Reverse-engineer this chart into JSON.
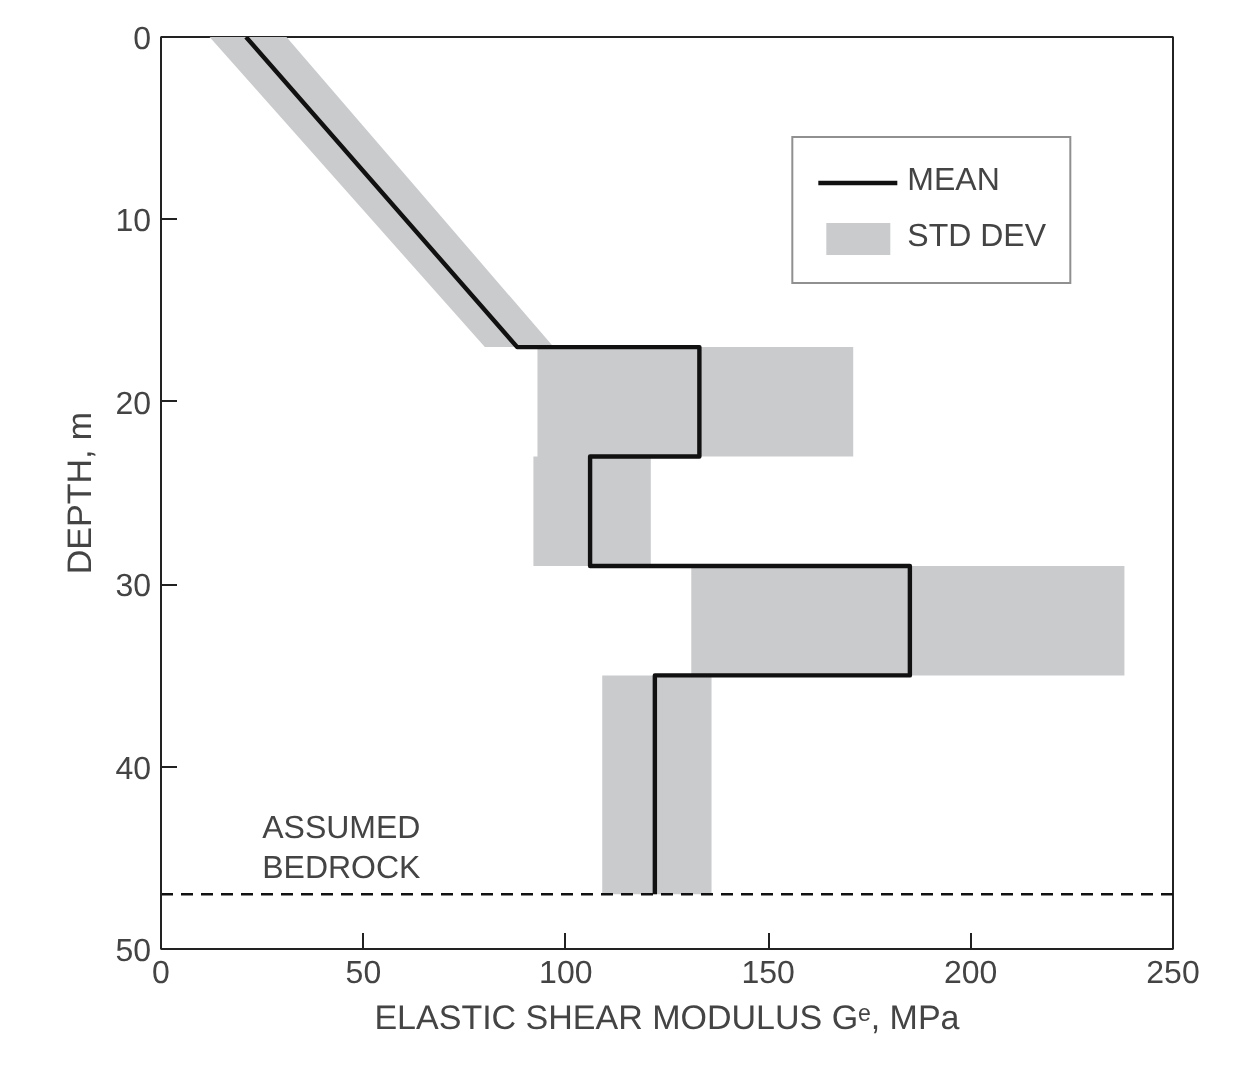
{
  "chart_data": {
    "type": "line",
    "xlabel": "ELASTIC SHEAR MODULUS Gᵉ, MPa",
    "ylabel": "DEPTH, m",
    "xlim": [
      0,
      250
    ],
    "xticks": [
      0,
      50,
      100,
      150,
      200,
      250
    ],
    "ylim": [
      50,
      0
    ],
    "yticks": [
      0,
      10,
      20,
      30,
      40,
      50
    ],
    "legend": "top right",
    "series": [
      {
        "name": "MEAN",
        "color": "#111111",
        "line_style": "solid",
        "x": [
          21,
          88,
          133,
          133,
          106,
          106,
          185,
          185,
          122,
          122
        ],
        "values": [
          0,
          17,
          17,
          23,
          23,
          29,
          29,
          35,
          35,
          47
        ]
      },
      {
        "name": "STD DEV",
        "type": "area",
        "color": "#cacbcd",
        "x": [
          12,
          80,
          93,
          93,
          92,
          92,
          131,
          131,
          109,
          109,
          136,
          136,
          238,
          238,
          121,
          121,
          171,
          171,
          97,
          31
        ],
        "values": [
          0,
          17,
          17,
          23,
          23,
          29,
          29,
          35,
          35,
          47,
          47,
          35,
          35,
          29,
          29,
          23,
          23,
          17,
          17,
          0
        ]
      }
    ],
    "ref_lines": [
      {
        "axis": "y",
        "value": 47,
        "label": "ASSUMED\nBEDROCK",
        "line_style": "dashed",
        "color": "#111111"
      }
    ]
  }
}
